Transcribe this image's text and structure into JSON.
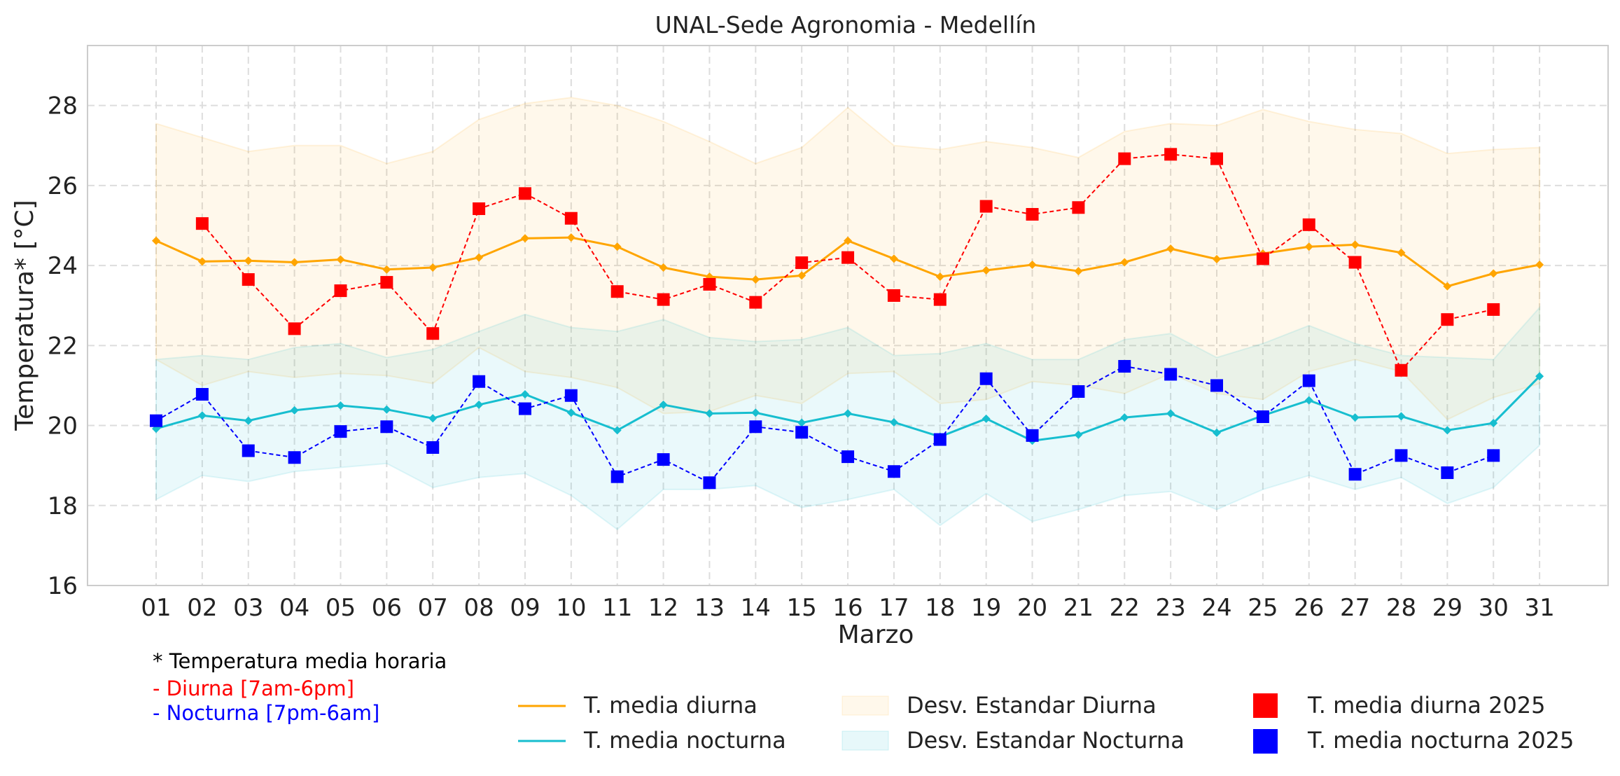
{
  "chart_data": {
    "type": "line",
    "title": "UNAL-Sede Agronomia - Medellín",
    "xlabel": "Marzo",
    "ylabel": "Temperatura* [°C]",
    "ylim": [
      16,
      29.5
    ],
    "yticks": [
      "16",
      "18",
      "20",
      "22",
      "24",
      "26",
      "28"
    ],
    "categories": [
      "01",
      "02",
      "03",
      "04",
      "05",
      "06",
      "07",
      "08",
      "09",
      "10",
      "11",
      "12",
      "13",
      "14",
      "15",
      "16",
      "17",
      "18",
      "19",
      "20",
      "21",
      "22",
      "23",
      "24",
      "25",
      "26",
      "27",
      "28",
      "29",
      "30",
      "31"
    ],
    "grid": true,
    "legend_position": "bottom",
    "series": [
      {
        "name": "T. media diurna",
        "kind": "line",
        "color": "#ffa500",
        "values": [
          24.62,
          24.1,
          24.12,
          24.08,
          24.15,
          23.9,
          23.95,
          24.2,
          24.68,
          24.7,
          24.47,
          23.95,
          23.72,
          23.65,
          23.75,
          24.62,
          24.17,
          23.72,
          23.88,
          24.02,
          23.86,
          24.08,
          24.42,
          24.16,
          24.3,
          24.47,
          24.52,
          24.32,
          23.48,
          23.8,
          24.02
        ]
      },
      {
        "name": "T. media nocturna",
        "kind": "line",
        "color": "#17becf",
        "values": [
          19.92,
          20.25,
          20.12,
          20.38,
          20.5,
          20.4,
          20.18,
          20.52,
          20.78,
          20.32,
          19.88,
          20.52,
          20.3,
          20.32,
          20.07,
          20.3,
          20.08,
          19.72,
          20.17,
          19.62,
          19.77,
          20.2,
          20.3,
          19.82,
          20.25,
          20.63,
          20.2,
          20.23,
          19.88,
          20.06,
          21.23
        ]
      },
      {
        "name": "Desv. Estandar Diurna",
        "kind": "band",
        "color": "#ffa500",
        "upper": [
          27.55,
          27.2,
          26.85,
          27.0,
          27.0,
          26.55,
          26.85,
          27.65,
          28.05,
          28.2,
          28.0,
          27.6,
          27.1,
          26.55,
          26.95,
          27.95,
          27.0,
          26.9,
          27.1,
          26.95,
          26.7,
          27.35,
          27.55,
          27.5,
          27.9,
          27.6,
          27.4,
          27.3,
          26.8,
          26.9,
          26.95
        ],
        "lower": [
          21.65,
          21.0,
          21.35,
          21.2,
          21.3,
          21.25,
          21.05,
          21.95,
          21.35,
          21.2,
          20.95,
          20.3,
          20.35,
          20.75,
          20.55,
          21.3,
          21.35,
          20.55,
          20.65,
          21.1,
          21.0,
          20.8,
          21.3,
          20.8,
          20.65,
          21.35,
          21.65,
          21.35,
          20.15,
          20.7,
          21.05
        ]
      },
      {
        "name": "Desv. Estandar Nocturna",
        "kind": "band",
        "color": "#17becf",
        "upper": [
          21.65,
          21.75,
          21.65,
          21.95,
          22.05,
          21.7,
          21.9,
          22.35,
          22.78,
          22.45,
          22.35,
          22.65,
          22.2,
          22.1,
          22.15,
          22.45,
          21.75,
          21.8,
          22.05,
          21.65,
          21.65,
          22.15,
          22.3,
          21.7,
          22.05,
          22.5,
          22.05,
          21.75,
          21.7,
          21.65,
          22.95
        ],
        "lower": [
          18.15,
          18.75,
          18.6,
          18.85,
          18.95,
          19.05,
          18.45,
          18.7,
          18.8,
          18.25,
          17.4,
          18.4,
          18.4,
          18.5,
          17.95,
          18.15,
          18.4,
          17.5,
          18.3,
          17.6,
          17.9,
          18.25,
          18.35,
          17.9,
          18.4,
          18.75,
          18.4,
          18.7,
          18.05,
          18.45,
          19.5
        ]
      },
      {
        "name": "T. media diurna 2025",
        "kind": "markers",
        "color": "#ff0000",
        "values": [
          null,
          25.05,
          23.65,
          22.42,
          23.37,
          23.58,
          22.3,
          25.42,
          25.8,
          25.18,
          23.35,
          23.15,
          23.53,
          23.08,
          24.07,
          24.2,
          23.25,
          23.15,
          25.48,
          25.28,
          25.45,
          26.67,
          26.78,
          26.67,
          24.17,
          25.02,
          24.08,
          21.38,
          22.65,
          22.9,
          null
        ]
      },
      {
        "name": "T. media nocturna 2025",
        "kind": "markers",
        "color": "#0000ff",
        "values": [
          20.12,
          20.78,
          19.37,
          19.2,
          19.85,
          19.97,
          19.45,
          21.1,
          20.42,
          20.75,
          18.72,
          19.15,
          18.57,
          19.97,
          19.83,
          19.22,
          18.85,
          19.65,
          21.17,
          19.75,
          20.85,
          21.48,
          21.28,
          21.0,
          20.22,
          21.12,
          18.78,
          19.25,
          18.82,
          19.25,
          null
        ]
      }
    ]
  },
  "notes": {
    "line1": "* Temperatura media horaria",
    "line2": "- Diurna [7am-6pm]",
    "line3": "- Nocturna [7pm-6am]"
  }
}
